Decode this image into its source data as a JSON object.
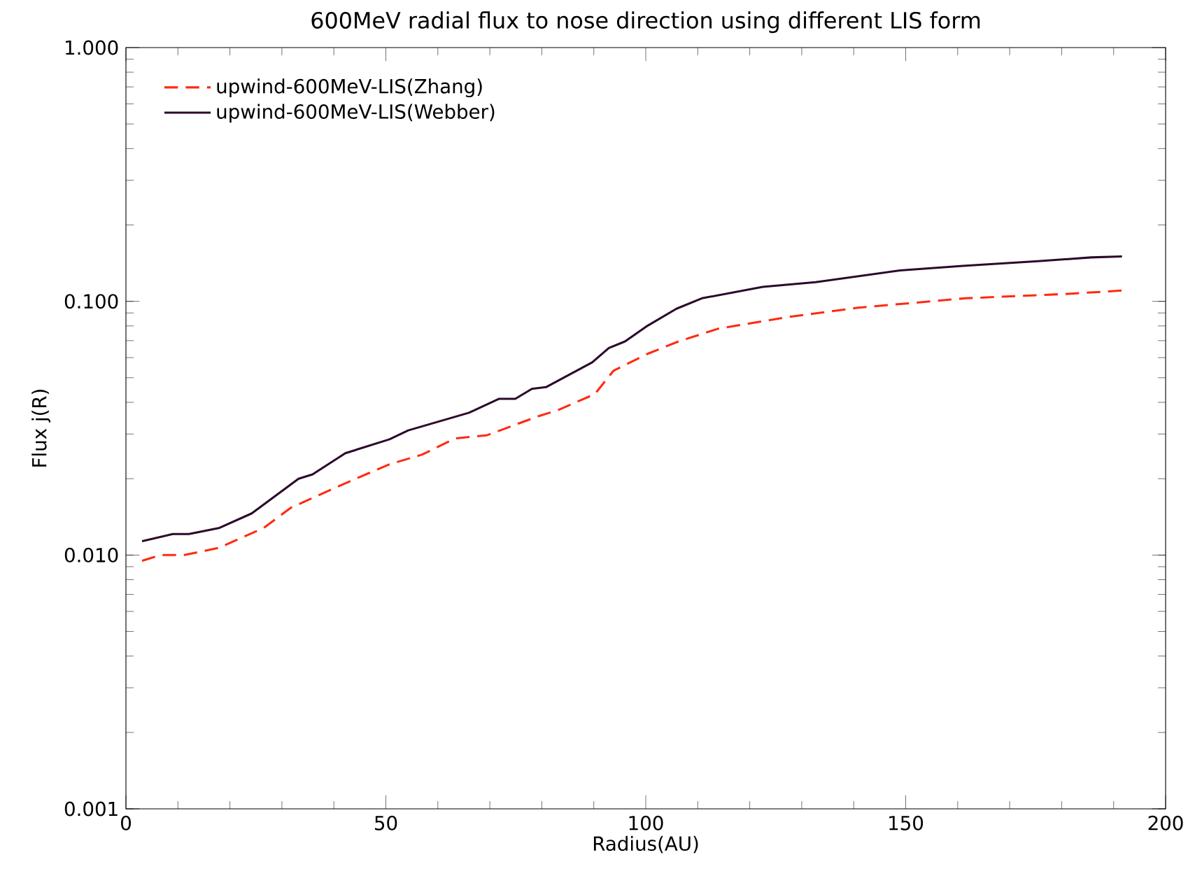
{
  "chart_data": {
    "type": "line",
    "title": "600MeV radial flux to nose direction using different LIS form",
    "xlabel": "Radius(AU)",
    "ylabel": "Flux j(R)",
    "log": "y",
    "xlim": [
      0,
      200
    ],
    "ylim": [
      0.001,
      1
    ],
    "xticks": [
      0,
      50,
      100,
      150,
      200
    ],
    "yticks": [
      {
        "value": 0.001,
        "label": "0.001"
      },
      {
        "value": 0.01,
        "label": "0.010"
      },
      {
        "value": 0.1,
        "label": "0.100"
      },
      {
        "value": 1,
        "label": "1.000"
      }
    ],
    "grid": false,
    "legend": "top left",
    "marker": "none",
    "series": [
      {
        "name": "upwind-600MeV-LIS(Zhang)",
        "color": "#ff2a10",
        "line_style": "dashed",
        "x": [
          3.1,
          6.7,
          11.2,
          18.0,
          26.5,
          31.8,
          41.7,
          50.7,
          57.0,
          63.3,
          69.5,
          79.4,
          83.0,
          90.2,
          93.8,
          100.5,
          106.3,
          113.9,
          127.4,
          140.9,
          161.5,
          181.2,
          191.6
        ],
        "values": [
          0.0095,
          0.01,
          0.01,
          0.0107,
          0.0128,
          0.0154,
          0.019,
          0.0228,
          0.0249,
          0.0288,
          0.0297,
          0.0353,
          0.0372,
          0.0431,
          0.0533,
          0.0623,
          0.0695,
          0.078,
          0.0867,
          0.0944,
          0.1028,
          0.107,
          0.1103
        ]
      },
      {
        "name": "upwind-600MeV-LIS(Webber)",
        "color": "#2a0a2a",
        "line_style": "solid",
        "x": [
          3.1,
          9.0,
          12.1,
          18.0,
          24.2,
          33.2,
          35.9,
          42.2,
          50.7,
          54.3,
          66.0,
          71.8,
          74.9,
          78.1,
          80.8,
          89.7,
          92.9,
          96.0,
          100.1,
          105.9,
          110.8,
          122.5,
          132.7,
          148.9,
          161.0,
          175.5,
          185.7,
          191.6
        ],
        "values": [
          0.01135,
          0.0121,
          0.0121,
          0.0128,
          0.0146,
          0.02,
          0.0208,
          0.0252,
          0.0286,
          0.031,
          0.0364,
          0.0413,
          0.0413,
          0.0452,
          0.0459,
          0.0575,
          0.0655,
          0.0695,
          0.0796,
          0.0935,
          0.1028,
          0.114,
          0.119,
          0.1324,
          0.138,
          0.144,
          0.149,
          0.1503
        ]
      }
    ]
  }
}
